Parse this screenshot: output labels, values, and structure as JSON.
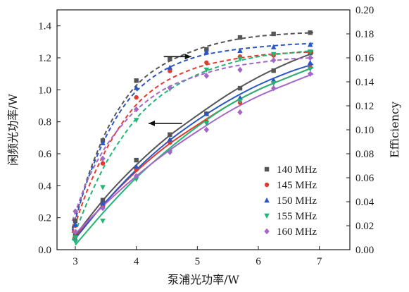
{
  "chart_data": {
    "type": "scatter",
    "xlabel": "泵浦光功率/W",
    "ylabel_left": "闲频光功率/W",
    "ylabel_right": "Efficiency",
    "xlim": [
      2.7,
      7.5
    ],
    "ylim_left": [
      0.0,
      1.5
    ],
    "ylim_right": [
      0.0,
      0.2
    ],
    "xticks": [
      3,
      4,
      5,
      6,
      7
    ],
    "yticks_left": [
      0.0,
      0.2,
      0.4,
      0.6,
      0.8,
      1.0,
      1.2,
      1.4
    ],
    "yticks_right": [
      0.0,
      0.02,
      0.04,
      0.06,
      0.08,
      0.1,
      0.12,
      0.14,
      0.16,
      0.18,
      0.2
    ],
    "xtick_labels": [
      "3",
      "4",
      "5",
      "6",
      "7"
    ],
    "ytick_labels_left": [
      "0.0",
      "0.2",
      "0.4",
      "0.6",
      "0.8",
      "1.0",
      "1.2",
      "1.4"
    ],
    "ytick_labels_right": [
      "0.00",
      "0.02",
      "0.04",
      "0.06",
      "0.08",
      "0.10",
      "0.12",
      "0.14",
      "0.16",
      "0.18",
      "0.20"
    ],
    "grid": false,
    "legend_position": "bottom-right",
    "series": [
      {
        "name": "140 MHz",
        "color": "#555555",
        "marker": "square",
        "power_points": [
          [
            3.0,
            0.09
          ],
          [
            3.45,
            0.31
          ],
          [
            4.0,
            0.56
          ],
          [
            4.55,
            0.72
          ],
          [
            5.15,
            0.85
          ],
          [
            5.7,
            1.01
          ],
          [
            6.25,
            1.12
          ],
          [
            6.85,
            1.23
          ]
        ],
        "power_fit": [
          [
            3.0,
            0.09
          ],
          [
            3.5,
            0.33
          ],
          [
            4.0,
            0.53
          ],
          [
            4.5,
            0.7
          ],
          [
            5.0,
            0.84
          ],
          [
            5.5,
            0.97
          ],
          [
            6.0,
            1.08
          ],
          [
            6.5,
            1.17
          ],
          [
            6.9,
            1.23
          ]
        ],
        "efficiency_points": [
          [
            3.0,
            0.024
          ],
          [
            3.45,
            0.091
          ],
          [
            4.0,
            0.141
          ],
          [
            4.55,
            0.159
          ],
          [
            5.15,
            0.167
          ],
          [
            5.7,
            0.177
          ],
          [
            6.25,
            0.18
          ],
          [
            6.85,
            0.181
          ]
        ],
        "efficiency_fit": [
          [
            2.95,
            0.018
          ],
          [
            3.2,
            0.06
          ],
          [
            3.5,
            0.098
          ],
          [
            3.8,
            0.124
          ],
          [
            4.1,
            0.142
          ],
          [
            4.5,
            0.156
          ],
          [
            5.0,
            0.167
          ],
          [
            5.5,
            0.174
          ],
          [
            6.0,
            0.178
          ],
          [
            6.5,
            0.18
          ],
          [
            6.9,
            0.181
          ]
        ]
      },
      {
        "name": "145 MHz",
        "color": "#e23b2e",
        "marker": "circle",
        "power_points": [
          [
            3.0,
            0.08
          ],
          [
            3.45,
            0.27
          ],
          [
            4.0,
            0.5
          ],
          [
            4.55,
            0.67
          ],
          [
            5.15,
            0.8
          ],
          [
            5.7,
            0.92
          ],
          [
            6.25,
            1.05
          ],
          [
            6.85,
            1.14
          ]
        ],
        "power_fit": [
          [
            3.0,
            0.08
          ],
          [
            3.5,
            0.3
          ],
          [
            4.0,
            0.49
          ],
          [
            4.5,
            0.65
          ],
          [
            5.0,
            0.78
          ],
          [
            5.5,
            0.9
          ],
          [
            6.0,
            1.0
          ],
          [
            6.5,
            1.08
          ],
          [
            6.9,
            1.14
          ]
        ],
        "efficiency_points": [
          [
            3.0,
            0.02
          ],
          [
            3.45,
            0.072
          ],
          [
            4.0,
            0.127
          ],
          [
            4.55,
            0.149
          ],
          [
            5.15,
            0.156
          ],
          [
            5.7,
            0.161
          ],
          [
            6.25,
            0.162
          ],
          [
            6.85,
            0.165
          ]
        ],
        "efficiency_fit": [
          [
            2.95,
            0.014
          ],
          [
            3.2,
            0.05
          ],
          [
            3.5,
            0.083
          ],
          [
            3.8,
            0.108
          ],
          [
            4.1,
            0.126
          ],
          [
            4.5,
            0.141
          ],
          [
            5.0,
            0.152
          ],
          [
            5.5,
            0.158
          ],
          [
            6.0,
            0.162
          ],
          [
            6.5,
            0.164
          ],
          [
            6.9,
            0.165
          ]
        ]
      },
      {
        "name": "150 MHz",
        "color": "#2a56c6",
        "marker": "triangle-up",
        "power_points": [
          [
            3.0,
            0.07
          ],
          [
            3.45,
            0.29
          ],
          [
            4.0,
            0.52
          ],
          [
            4.55,
            0.69
          ],
          [
            5.15,
            0.85
          ],
          [
            5.7,
            0.95
          ],
          [
            6.25,
            1.06
          ],
          [
            6.85,
            1.17
          ]
        ],
        "power_fit": [
          [
            3.0,
            0.07
          ],
          [
            3.5,
            0.3
          ],
          [
            4.0,
            0.5
          ],
          [
            4.5,
            0.67
          ],
          [
            5.0,
            0.81
          ],
          [
            5.5,
            0.93
          ],
          [
            6.0,
            1.03
          ],
          [
            6.5,
            1.11
          ],
          [
            6.9,
            1.16
          ]
        ],
        "efficiency_points": [
          [
            3.0,
            0.021
          ],
          [
            3.45,
            0.089
          ],
          [
            4.0,
            0.135
          ],
          [
            4.55,
            0.152
          ],
          [
            5.15,
            0.165
          ],
          [
            5.7,
            0.166
          ],
          [
            6.25,
            0.169
          ],
          [
            6.85,
            0.171
          ]
        ],
        "efficiency_fit": [
          [
            2.95,
            0.016
          ],
          [
            3.2,
            0.058
          ],
          [
            3.5,
            0.094
          ],
          [
            3.8,
            0.12
          ],
          [
            4.1,
            0.137
          ],
          [
            4.5,
            0.151
          ],
          [
            5.0,
            0.161
          ],
          [
            5.5,
            0.166
          ],
          [
            6.0,
            0.169
          ],
          [
            6.5,
            0.171
          ],
          [
            6.9,
            0.172
          ]
        ]
      },
      {
        "name": "155 MHz",
        "color": "#22b573",
        "marker": "triangle-down",
        "power_points": [
          [
            3.0,
            0.05
          ],
          [
            3.45,
            0.18
          ],
          [
            4.0,
            0.44
          ],
          [
            4.55,
            0.61
          ],
          [
            5.15,
            0.79
          ],
          [
            5.7,
            0.93
          ],
          [
            6.25,
            1.04
          ],
          [
            6.85,
            1.13
          ]
        ],
        "power_fit": [
          [
            3.0,
            0.03
          ],
          [
            3.5,
            0.25
          ],
          [
            4.0,
            0.45
          ],
          [
            4.5,
            0.62
          ],
          [
            5.0,
            0.77
          ],
          [
            5.5,
            0.9
          ],
          [
            6.0,
            1.0
          ],
          [
            6.5,
            1.08
          ],
          [
            6.9,
            1.14
          ]
        ],
        "efficiency_points": [
          [
            3.0,
            0.01
          ],
          [
            3.45,
            0.052
          ],
          [
            4.0,
            0.108
          ],
          [
            4.55,
            0.134
          ],
          [
            5.15,
            0.15
          ],
          [
            5.7,
            0.159
          ],
          [
            6.25,
            0.163
          ],
          [
            6.85,
            0.165
          ]
        ],
        "efficiency_fit": [
          [
            2.95,
            0.008
          ],
          [
            3.2,
            0.04
          ],
          [
            3.5,
            0.072
          ],
          [
            3.8,
            0.096
          ],
          [
            4.1,
            0.115
          ],
          [
            4.5,
            0.132
          ],
          [
            5.0,
            0.146
          ],
          [
            5.5,
            0.155
          ],
          [
            6.0,
            0.161
          ],
          [
            6.5,
            0.164
          ],
          [
            6.9,
            0.166
          ]
        ]
      },
      {
        "name": "160 MHz",
        "color": "#a366c9",
        "marker": "diamond",
        "power_points": [
          [
            3.0,
            0.11
          ],
          [
            3.45,
            0.26
          ],
          [
            4.0,
            0.46
          ],
          [
            4.55,
            0.61
          ],
          [
            5.15,
            0.75
          ],
          [
            5.7,
            0.86
          ],
          [
            6.25,
            1.01
          ],
          [
            6.85,
            1.1
          ]
        ],
        "power_fit": [
          [
            3.0,
            0.1
          ],
          [
            3.5,
            0.29
          ],
          [
            4.0,
            0.46
          ],
          [
            4.5,
            0.61
          ],
          [
            5.0,
            0.74
          ],
          [
            5.5,
            0.86
          ],
          [
            6.0,
            0.96
          ],
          [
            6.5,
            1.04
          ],
          [
            6.9,
            1.1
          ]
        ],
        "efficiency_points": [
          [
            3.0,
            0.032
          ],
          [
            3.45,
            0.076
          ],
          [
            4.0,
            0.117
          ],
          [
            4.55,
            0.135
          ],
          [
            5.15,
            0.145
          ],
          [
            5.7,
            0.15
          ],
          [
            6.25,
            0.158
          ],
          [
            6.85,
            0.16
          ]
        ],
        "efficiency_fit": [
          [
            2.95,
            0.024
          ],
          [
            3.2,
            0.058
          ],
          [
            3.5,
            0.086
          ],
          [
            3.8,
            0.106
          ],
          [
            4.1,
            0.121
          ],
          [
            4.5,
            0.135
          ],
          [
            5.0,
            0.145
          ],
          [
            5.5,
            0.152
          ],
          [
            6.0,
            0.156
          ],
          [
            6.5,
            0.159
          ],
          [
            6.9,
            0.16
          ]
        ]
      }
    ],
    "annotations": [
      {
        "type": "arrow",
        "direction": "right",
        "axis": "right",
        "x_from": 4.45,
        "x_to": 4.9,
        "y": 0.161
      },
      {
        "type": "arrow",
        "direction": "left",
        "axis": "left",
        "x_from": 4.75,
        "x_to": 4.2,
        "y": 0.79
      }
    ]
  }
}
